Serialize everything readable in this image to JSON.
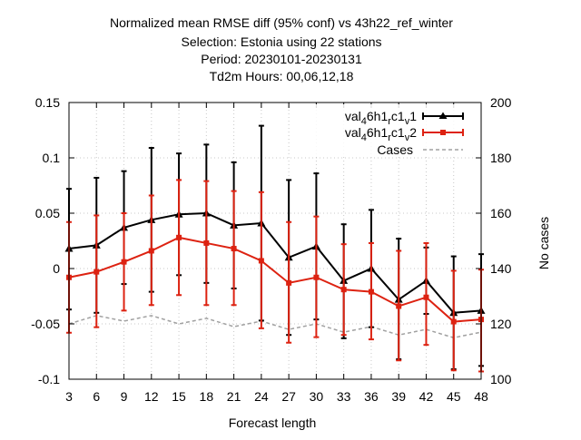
{
  "chart_data": {
    "type": "line",
    "title_lines": [
      "Normalized mean RMSE diff (95% conf) vs 43h22_ref_winter",
      "Selection: Estonia using    22 stations",
      "Period: 20230101-20230131",
      "Td2m   Hours:  00,06,12,18"
    ],
    "xlabel": "Forecast length",
    "ylabel_right": "No cases",
    "x": [
      3,
      6,
      9,
      12,
      15,
      18,
      21,
      24,
      27,
      30,
      33,
      36,
      39,
      42,
      45,
      48
    ],
    "x_ticks": [
      "3",
      "6",
      "9",
      "12",
      "15",
      "18",
      "21",
      "24",
      "27",
      "30",
      "33",
      "36",
      "39",
      "42",
      "45",
      "48"
    ],
    "xlim": [
      3,
      48
    ],
    "ylim": [
      -0.1,
      0.15
    ],
    "y_ticks": [
      "-0.1",
      "-0.05",
      "0",
      "0.05",
      "0.1",
      "0.15"
    ],
    "y_tick_values": [
      -0.1,
      -0.05,
      0,
      0.05,
      0.1,
      0.15
    ],
    "y2lim": [
      100,
      200
    ],
    "y2_ticks": [
      "100",
      "120",
      "140",
      "160",
      "180",
      "200"
    ],
    "y2_tick_values": [
      100,
      120,
      140,
      160,
      180,
      200
    ],
    "grid": true,
    "legend_position": "top-right",
    "series": [
      {
        "name": "val_46h1_rc1_v1",
        "legend_main": "val",
        "legend_parts": [
          "4",
          "6h1",
          "r",
          "c1",
          "v",
          "1"
        ],
        "color": "#000000",
        "marker": "triangle",
        "values": [
          0.018,
          0.021,
          0.037,
          0.044,
          0.049,
          0.05,
          0.039,
          0.041,
          0.01,
          0.02,
          -0.011,
          0.0,
          -0.028,
          -0.011,
          -0.04,
          -0.038
        ],
        "upper": [
          0.072,
          0.082,
          0.088,
          0.109,
          0.104,
          0.112,
          0.096,
          0.129,
          0.08,
          0.086,
          0.04,
          0.053,
          0.027,
          0.019,
          0.011,
          0.013
        ],
        "lower": [
          -0.037,
          -0.04,
          -0.014,
          -0.021,
          -0.006,
          -0.013,
          -0.018,
          -0.047,
          -0.06,
          -0.046,
          -0.063,
          -0.053,
          -0.082,
          -0.041,
          -0.091,
          -0.088
        ]
      },
      {
        "name": "val_46h1_rc1_v2",
        "legend_main": "val",
        "legend_parts": [
          "4",
          "6h1",
          "r",
          "c1",
          "v",
          "2"
        ],
        "color": "#dd2211",
        "marker": "square",
        "values": [
          -0.008,
          -0.003,
          0.006,
          0.016,
          0.028,
          0.023,
          0.018,
          0.007,
          -0.013,
          -0.008,
          -0.019,
          -0.021,
          -0.034,
          -0.026,
          -0.048,
          -0.046
        ],
        "upper": [
          0.042,
          0.048,
          0.05,
          0.066,
          0.08,
          0.079,
          0.07,
          0.069,
          0.042,
          0.047,
          0.022,
          0.023,
          0.016,
          0.023,
          -0.002,
          -0.001
        ],
        "lower": [
          -0.058,
          -0.053,
          -0.038,
          -0.033,
          -0.024,
          -0.033,
          -0.033,
          -0.054,
          -0.067,
          -0.062,
          -0.06,
          -0.064,
          -0.083,
          -0.069,
          -0.092,
          -0.093
        ]
      },
      {
        "name": "Cases",
        "color": "#a0a0a0",
        "dashed": true,
        "axis": "y2",
        "values": [
          120,
          123,
          121,
          123,
          120,
          122,
          119,
          121,
          118,
          120,
          117,
          119,
          116,
          118,
          115,
          117
        ]
      }
    ]
  }
}
